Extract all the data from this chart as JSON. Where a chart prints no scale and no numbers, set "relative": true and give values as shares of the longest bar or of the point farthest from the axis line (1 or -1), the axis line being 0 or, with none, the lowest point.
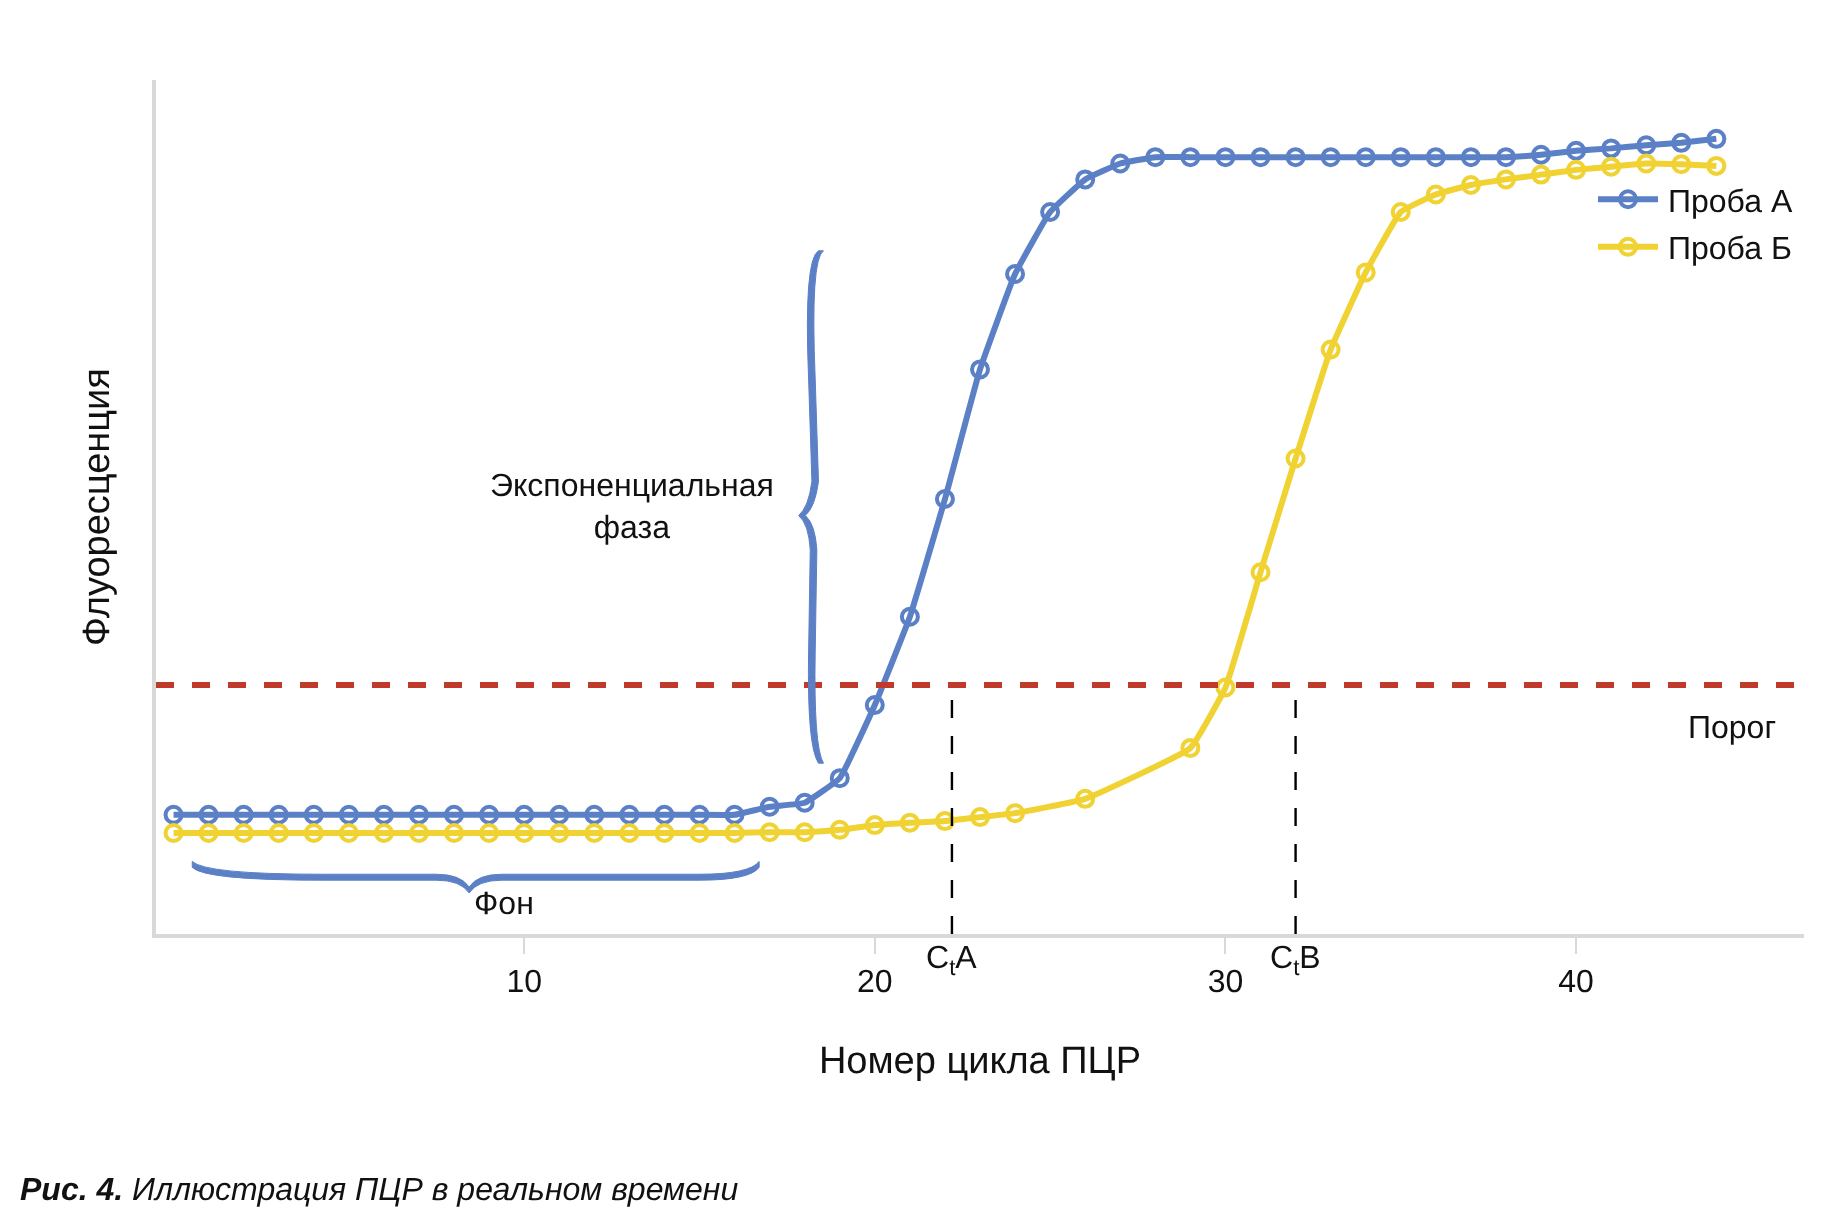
{
  "chart_data": {
    "type": "line",
    "relative": true,
    "xlabel": "Номер цикла ПЦР",
    "ylabel": "Флуоресценция",
    "x": [
      0,
      1,
      2,
      3,
      4,
      5,
      6,
      7,
      8,
      9,
      10,
      11,
      12,
      13,
      14,
      15,
      16,
      17,
      18,
      19,
      20,
      21,
      22,
      23,
      24,
      25,
      26,
      27,
      28,
      29,
      30,
      31,
      32,
      33,
      34,
      35,
      36,
      37,
      38,
      39,
      40,
      41,
      42,
      43,
      44
    ],
    "xlim": [
      -0.5,
      46.5
    ],
    "xticks": [
      10,
      20,
      30,
      40
    ],
    "series": [
      {
        "name": "Проба А",
        "color": "#5b80c6",
        "values": [
          0.15,
          0.15,
          0.15,
          0.15,
          0.15,
          0.15,
          0.15,
          0.15,
          0.15,
          0.15,
          0.15,
          0.15,
          0.15,
          0.15,
          0.15,
          0.15,
          0.15,
          0.16,
          0.165,
          0.196,
          0.288,
          0.399,
          0.547,
          0.71,
          0.83,
          0.908,
          0.949,
          0.969,
          0.977,
          0.977,
          0.977,
          0.977,
          0.977,
          0.977,
          0.977,
          0.977,
          0.977,
          0.977,
          0.977,
          0.98,
          0.985,
          0.988,
          0.992,
          0.995,
          1.0
        ]
      },
      {
        "name": "Проба Б",
        "color": "#f0d232",
        "x": [
          0,
          1,
          2,
          3,
          4,
          5,
          6,
          7,
          8,
          9,
          10,
          11,
          12,
          13,
          14,
          15,
          16,
          17,
          18,
          19,
          20,
          21,
          22,
          23,
          24,
          26,
          29,
          30,
          31,
          32,
          33,
          34,
          35,
          36,
          37,
          38,
          39,
          40,
          41,
          42,
          43,
          44
        ],
        "values": [
          0.127,
          0.127,
          0.127,
          0.127,
          0.127,
          0.127,
          0.127,
          0.127,
          0.127,
          0.127,
          0.127,
          0.127,
          0.127,
          0.127,
          0.127,
          0.127,
          0.127,
          0.128,
          0.128,
          0.131,
          0.137,
          0.14,
          0.142,
          0.147,
          0.152,
          0.17,
          0.234,
          0.31,
          0.455,
          0.598,
          0.735,
          0.832,
          0.908,
          0.93,
          0.942,
          0.949,
          0.955,
          0.961,
          0.965,
          0.969,
          0.968,
          0.966
        ]
      }
    ],
    "marker": "circle",
    "line_style": "solid",
    "legend": "top right",
    "ref_lines": [
      {
        "axis": "y",
        "value": 0.313,
        "label": "Порог",
        "color": "#c0392b",
        "line_style": "dashed"
      },
      {
        "axis": "x",
        "value": 22.2,
        "label": "C$_{t}$A",
        "color": "#000000",
        "line_style": "dashed"
      },
      {
        "axis": "x",
        "value": 32.0,
        "label": "C$_{t}$B",
        "color": "#000000",
        "line_style": "dashed"
      }
    ],
    "annotations": [
      "Экспоненциальная\nфаза",
      "Фон",
      "Рис. 4.",
      "Иллюстрация ПЦР в реальном времени"
    ]
  }
}
